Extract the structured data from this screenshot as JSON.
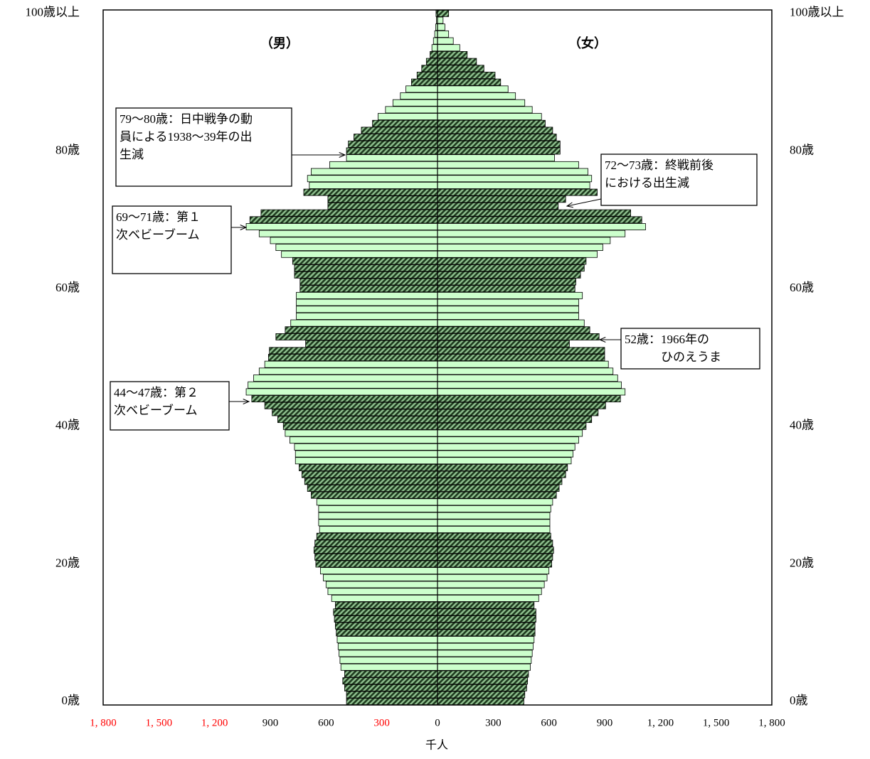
{
  "chart_data": {
    "type": "pyramid",
    "left_label": "（男）",
    "right_label": "（女）",
    "xlabel": "千人",
    "xlim": [
      -1800,
      1800
    ],
    "xticks": [
      {
        "value": -1800,
        "label": "1, 800"
      },
      {
        "value": -1500,
        "label": "1, 500"
      },
      {
        "value": -1200,
        "label": "1, 200"
      },
      {
        "value": -900,
        "label": "900"
      },
      {
        "value": -600,
        "label": "600"
      },
      {
        "value": -300,
        "label": "300"
      },
      0,
      300,
      600,
      900,
      {
        "value": 1200,
        "label": "1, 200"
      },
      {
        "value": 1500,
        "label": "1, 500"
      },
      {
        "value": 1800,
        "label": "1, 800"
      }
    ],
    "xtick_colors": [
      "#ff0000",
      "#ff0000",
      "#ff0000",
      "#000000",
      "#000000",
      "#ff0000",
      "#000000",
      "#000000",
      "#000000",
      "#000000",
      "#000000",
      "#000000",
      "#000000"
    ],
    "categories": [
      "0歳",
      null,
      null,
      null,
      null,
      null,
      null,
      null,
      null,
      null,
      null,
      null,
      null,
      null,
      null,
      null,
      null,
      null,
      null,
      null,
      "20歳",
      null,
      null,
      null,
      null,
      null,
      null,
      null,
      null,
      null,
      null,
      null,
      null,
      null,
      null,
      null,
      null,
      null,
      null,
      null,
      "40歳",
      null,
      null,
      null,
      null,
      null,
      null,
      null,
      null,
      null,
      null,
      null,
      null,
      null,
      null,
      null,
      null,
      null,
      null,
      null,
      "60歳",
      null,
      null,
      null,
      null,
      null,
      null,
      null,
      null,
      null,
      null,
      null,
      null,
      null,
      null,
      null,
      null,
      null,
      null,
      null,
      "80歳",
      null,
      null,
      null,
      null,
      null,
      null,
      null,
      null,
      null,
      null,
      null,
      null,
      null,
      null,
      null,
      null,
      null,
      null,
      null,
      "100歳以上"
    ],
    "color": "#ccffcc",
    "hatch_color": "#1e3a1e",
    "hatch_bg": "#8fc08f",
    "series": [
      {
        "side": "left",
        "values": [
          490,
          490,
          500,
          510,
          500,
          520,
          525,
          530,
          535,
          540,
          545,
          550,
          555,
          560,
          550,
          570,
          590,
          600,
          615,
          630,
          655,
          660,
          665,
          660,
          650,
          635,
          640,
          640,
          640,
          650,
          680,
          700,
          715,
          730,
          745,
          765,
          765,
          770,
          795,
          820,
          830,
          860,
          890,
          930,
          1000,
          1030,
          1020,
          990,
          960,
          930,
          910,
          905,
          710,
          870,
          820,
          790,
          760,
          760,
          760,
          760,
          740,
          740,
          770,
          770,
          780,
          840,
          870,
          900,
          960,
          1030,
          1010,
          950,
          590,
          590,
          720,
          690,
          700,
          680,
          580,
          490,
          490,
          480,
          450,
          410,
          350,
          320,
          280,
          240,
          200,
          170,
          140,
          110,
          85,
          60,
          40,
          30,
          22,
          15,
          10,
          6,
          8
        ]
      },
      {
        "side": "right",
        "values": [
          465,
          470,
          480,
          485,
          490,
          500,
          505,
          510,
          515,
          520,
          525,
          525,
          530,
          530,
          520,
          545,
          560,
          575,
          590,
          600,
          615,
          620,
          625,
          620,
          610,
          605,
          605,
          605,
          610,
          620,
          640,
          655,
          670,
          690,
          700,
          720,
          730,
          740,
          760,
          780,
          800,
          830,
          865,
          905,
          985,
          1010,
          990,
          970,
          945,
          920,
          900,
          900,
          710,
          870,
          820,
          790,
          760,
          760,
          760,
          780,
          740,
          745,
          770,
          790,
          800,
          860,
          890,
          930,
          1010,
          1120,
          1100,
          1040,
          650,
          690,
          860,
          820,
          830,
          810,
          760,
          630,
          660,
          660,
          640,
          620,
          580,
          560,
          510,
          470,
          420,
          380,
          340,
          310,
          250,
          210,
          160,
          120,
          85,
          60,
          40,
          30,
          60
        ]
      }
    ],
    "annotations": [
      {
        "lines": [
          "79〜80歳：日中戦争の動",
          "員による1938〜39年の出",
          "生減"
        ]
      },
      {
        "lines": [
          "72〜73歳：終戦前後",
          "における出生減"
        ]
      },
      {
        "lines": [
          "69〜71歳：第１",
          "次ベビーブーム"
        ]
      },
      {
        "lines": [
          "52歳：1966年の",
          "　　　ひのえうま"
        ]
      },
      {
        "lines": [
          "44〜47歳：第２",
          "次ベビーブーム"
        ]
      }
    ]
  }
}
